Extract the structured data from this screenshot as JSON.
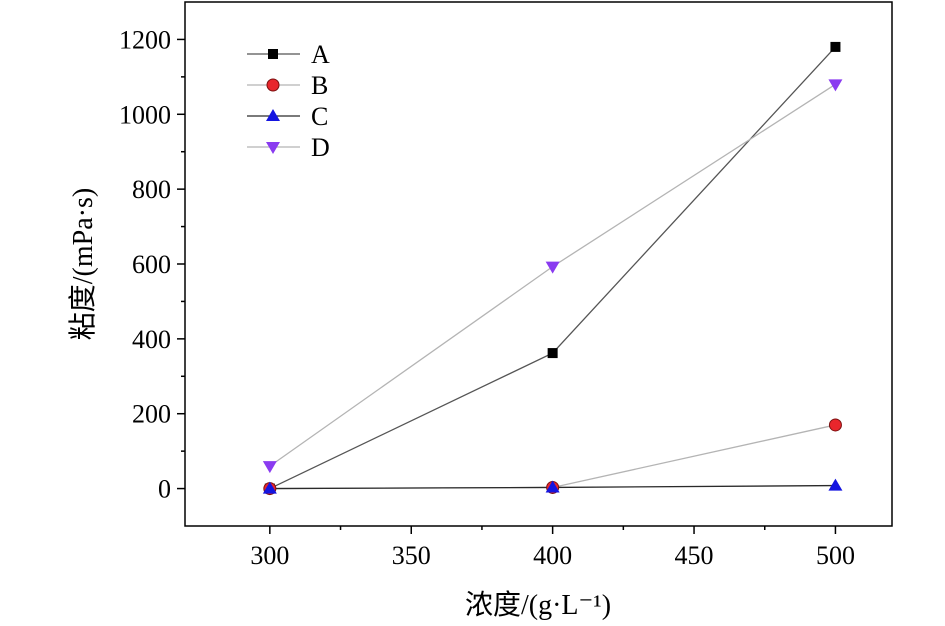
{
  "chart_data": {
    "type": "line",
    "xlabel": "浓度/(g·L⁻¹)",
    "ylabel": "粘度/(mPa·s)",
    "xlim": [
      270,
      520
    ],
    "ylim": [
      -100,
      1300
    ],
    "x_ticks": [
      300,
      350,
      400,
      450,
      500
    ],
    "y_ticks": [
      0,
      200,
      400,
      600,
      800,
      1000,
      1200
    ],
    "x": [
      300,
      400,
      500
    ],
    "series": [
      {
        "name": "A",
        "values": [
          0,
          362,
          1180
        ],
        "color": "#000000",
        "line_color": "#555555",
        "marker": "square"
      },
      {
        "name": "B",
        "values": [
          0,
          3,
          170
        ],
        "color": "#e8262c",
        "line_color": "#b4b4b4",
        "marker": "circle"
      },
      {
        "name": "C",
        "values": [
          0,
          3,
          8
        ],
        "color": "#1515e0",
        "line_color": "#2a2a2a",
        "marker": "triangle-up"
      },
      {
        "name": "D",
        "values": [
          60,
          593,
          1080
        ],
        "color": "#8a3bf0",
        "line_color": "#b4b4b4",
        "marker": "triangle-down"
      }
    ],
    "legend_position": "top-left",
    "grid": false
  }
}
